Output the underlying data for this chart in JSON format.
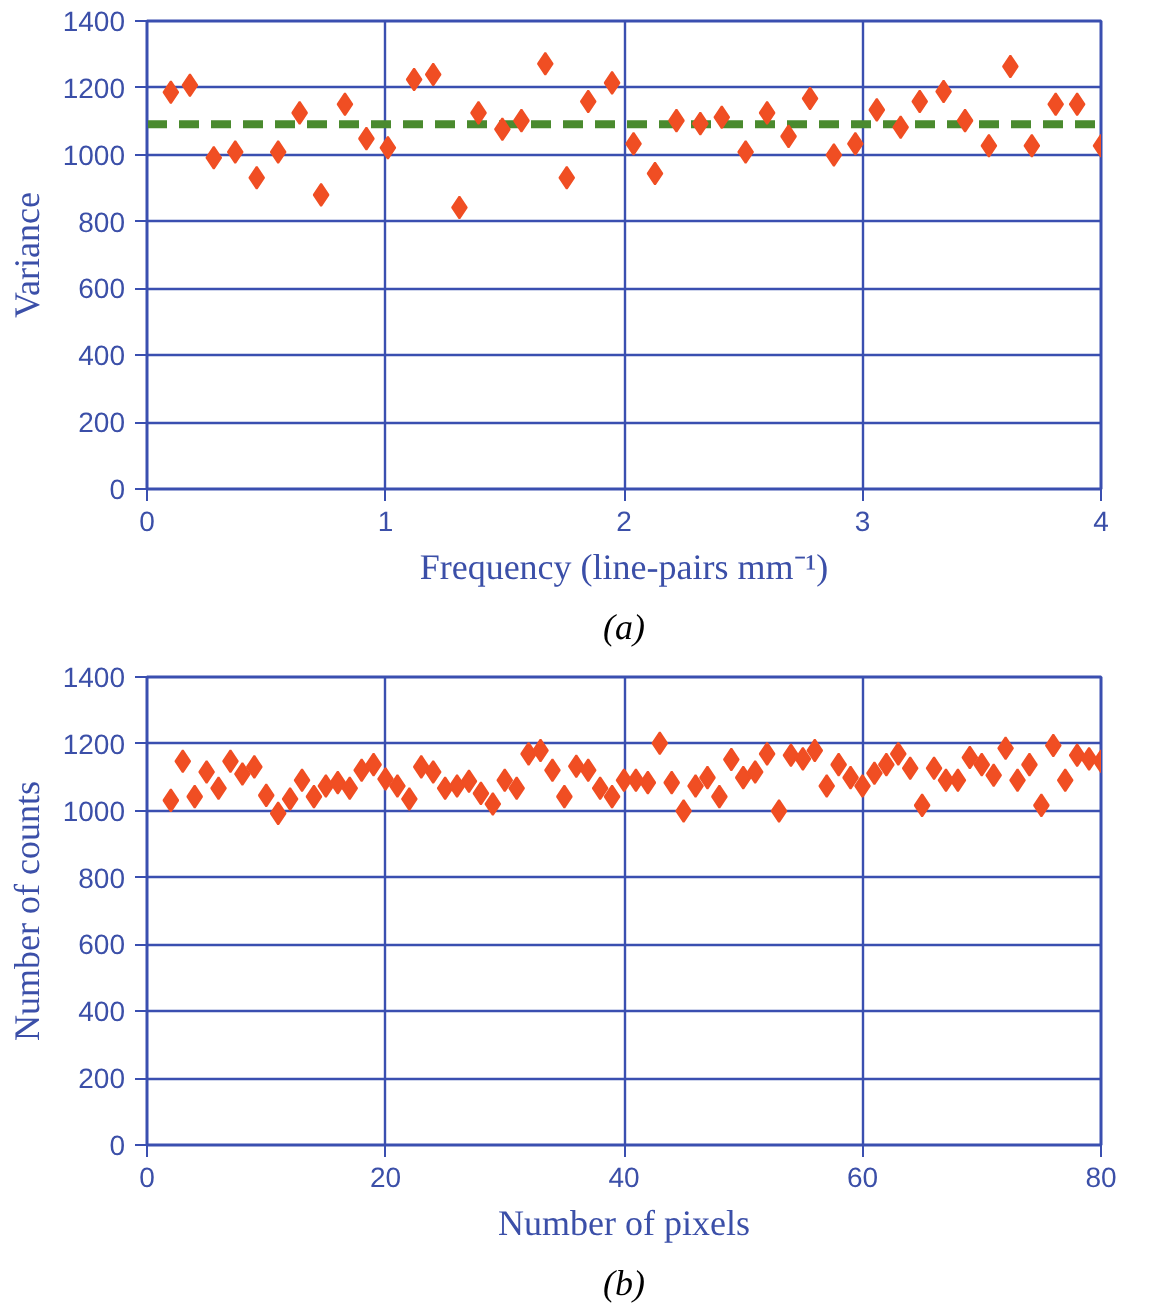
{
  "chart_data": [
    {
      "type": "scatter",
      "xlabel": "Frequency (line-pairs mm⁻¹)",
      "ylabel": "Variance",
      "annotations": [
        "(a)"
      ],
      "xlim": [
        0,
        4
      ],
      "xticks": [
        0,
        1,
        2,
        3,
        4
      ],
      "ylim": [
        0,
        1400
      ],
      "yticks": [
        0,
        200,
        400,
        600,
        800,
        1000,
        1200,
        1400
      ],
      "grid": true,
      "marker": "diamond",
      "series": [
        {
          "color": "#f04e23",
          "x": [
            0.1,
            0.18,
            0.28,
            0.37,
            0.46,
            0.55,
            0.64,
            0.73,
            0.83,
            0.92,
            1.01,
            1.12,
            1.2,
            1.31,
            1.39,
            1.49,
            1.57,
            1.67,
            1.76,
            1.85,
            1.95,
            2.04,
            2.13,
            2.22,
            2.32,
            2.41,
            2.51,
            2.6,
            2.69,
            2.78,
            2.88,
            2.97,
            3.06,
            3.16,
            3.24,
            3.34,
            3.43,
            3.53,
            3.62,
            3.71,
            3.81,
            3.9,
            4.0
          ],
          "values": [
            1187,
            1208,
            991,
            1008,
            931,
            1008,
            1125,
            880,
            1151,
            1048,
            1021,
            1225,
            1240,
            842,
            1125,
            1076,
            1102,
            1272,
            931,
            1159,
            1215,
            1033,
            944,
            1102,
            1093,
            1112,
            1008,
            1125,
            1055,
            1168,
            999,
            1033,
            1134,
            1082,
            1159,
            1189,
            1102,
            1027,
            1264,
            1027,
            1151,
            1151,
            1027
          ]
        }
      ],
      "ref_lines": [
        {
          "axis": "y",
          "value": 1091,
          "color": "#4a8a2e",
          "line_style": "dashed"
        }
      ]
    },
    {
      "type": "scatter",
      "xlabel": "Number of pixels",
      "ylabel": "Number of counts",
      "annotations": [
        "(b)"
      ],
      "xlim": [
        0,
        80
      ],
      "xticks": [
        0,
        20,
        40,
        60,
        80
      ],
      "ylim": [
        0,
        1400
      ],
      "yticks": [
        0,
        200,
        400,
        600,
        800,
        1000,
        1200,
        1400
      ],
      "grid": true,
      "marker": "diamond",
      "series": [
        {
          "color": "#f04e23",
          "x": [
            2,
            3,
            4,
            5,
            6,
            7,
            8,
            9,
            10,
            11,
            12,
            13,
            14,
            15,
            16,
            17,
            18,
            19,
            20,
            21,
            22,
            23,
            24,
            25,
            26,
            27,
            28,
            29,
            30,
            31,
            32,
            33,
            34,
            35,
            36,
            37,
            38,
            39,
            40,
            41,
            42,
            43,
            44,
            45,
            46,
            47,
            48,
            49,
            50,
            51,
            52,
            53,
            54,
            55,
            56,
            57,
            58,
            59,
            60,
            61,
            62,
            63,
            64,
            65,
            66,
            67,
            68,
            69,
            70,
            71,
            72,
            73,
            74,
            75,
            76,
            77,
            78,
            79,
            80
          ],
          "values": [
            1031,
            1148,
            1042,
            1116,
            1067,
            1148,
            1110,
            1131,
            1046,
            992,
            1035,
            1091,
            1042,
            1074,
            1084,
            1067,
            1121,
            1138,
            1095,
            1074,
            1035,
            1131,
            1116,
            1067,
            1074,
            1088,
            1052,
            1020,
            1091,
            1067,
            1170,
            1180,
            1121,
            1042,
            1133,
            1121,
            1067,
            1042,
            1091,
            1091,
            1084,
            1202,
            1084,
            999,
            1074,
            1099,
            1042,
            1153,
            1099,
            1116,
            1170,
            999,
            1166,
            1155,
            1180,
            1074,
            1138,
            1099,
            1074,
            1112,
            1138,
            1170,
            1127,
            1016,
            1127,
            1091,
            1091,
            1159,
            1138,
            1106,
            1187,
            1091,
            1138,
            1016,
            1195,
            1091,
            1166,
            1155,
            1148
          ]
        }
      ]
    }
  ]
}
